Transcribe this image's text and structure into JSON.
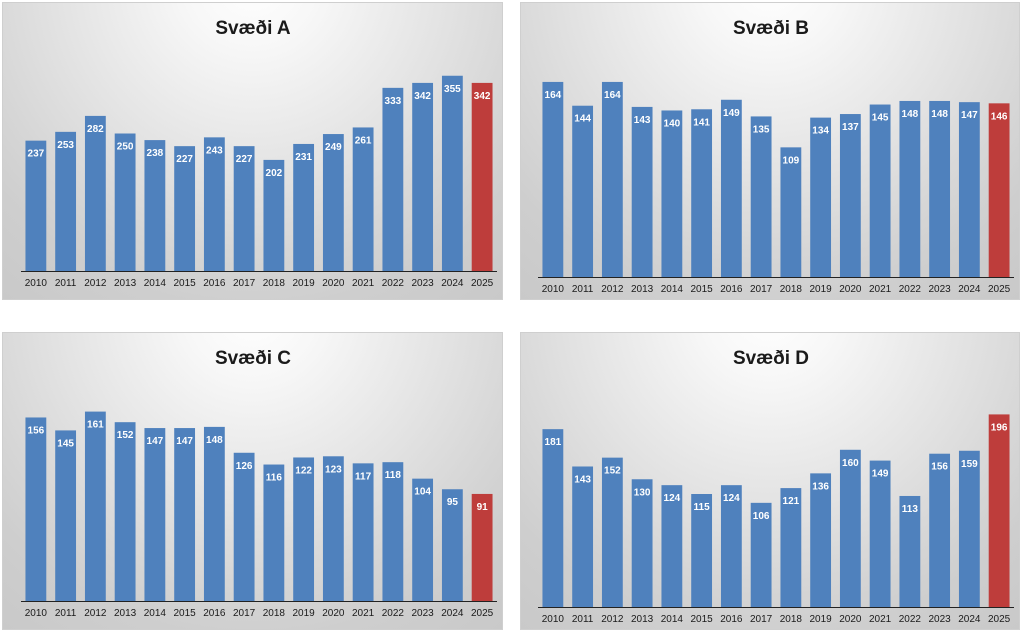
{
  "colors": {
    "bar": "#4f81bd",
    "highlight": "#be3d3b",
    "axis": "#222222"
  },
  "chart_data": [
    {
      "type": "bar",
      "title": "Svæði A",
      "categories": [
        "2010",
        "2011",
        "2012",
        "2013",
        "2014",
        "2015",
        "2016",
        "2017",
        "2018",
        "2019",
        "2020",
        "2021",
        "2022",
        "2023",
        "2024",
        "2025"
      ],
      "values": [
        237,
        253,
        282,
        250,
        238,
        227,
        243,
        227,
        202,
        231,
        249,
        261,
        333,
        342,
        355,
        342
      ],
      "highlight_category": "2025",
      "ylim": [
        0,
        400
      ],
      "grid": false,
      "legend": "none"
    },
    {
      "type": "bar",
      "title": "Svæði B",
      "categories": [
        "2010",
        "2011",
        "2012",
        "2013",
        "2014",
        "2015",
        "2016",
        "2017",
        "2018",
        "2019",
        "2020",
        "2021",
        "2022",
        "2023",
        "2024",
        "2025"
      ],
      "values": [
        164,
        144,
        164,
        143,
        140,
        141,
        149,
        135,
        109,
        134,
        137,
        145,
        148,
        148,
        147,
        146
      ],
      "highlight_category": "2025",
      "ylim": [
        0,
        190
      ],
      "grid": false,
      "legend": "none"
    },
    {
      "type": "bar",
      "title": "Svæði C",
      "categories": [
        "2010",
        "2011",
        "2012",
        "2013",
        "2014",
        "2015",
        "2016",
        "2017",
        "2018",
        "2019",
        "2020",
        "2021",
        "2022",
        "2023",
        "2024",
        "2025"
      ],
      "values": [
        156,
        145,
        161,
        152,
        147,
        147,
        148,
        126,
        116,
        122,
        123,
        117,
        118,
        104,
        95,
        91
      ],
      "highlight_category": "2025",
      "ylim": [
        0,
        187
      ],
      "grid": false,
      "legend": "none"
    },
    {
      "type": "bar",
      "title": "Svæði D",
      "categories": [
        "2010",
        "2011",
        "2012",
        "2013",
        "2014",
        "2015",
        "2016",
        "2017",
        "2018",
        "2019",
        "2020",
        "2021",
        "2022",
        "2023",
        "2024",
        "2025"
      ],
      "values": [
        181,
        143,
        152,
        130,
        124,
        115,
        124,
        106,
        121,
        136,
        160,
        149,
        113,
        156,
        159,
        196
      ],
      "highlight_category": "2025",
      "ylim": [
        0,
        230
      ],
      "grid": false,
      "legend": "none"
    }
  ]
}
